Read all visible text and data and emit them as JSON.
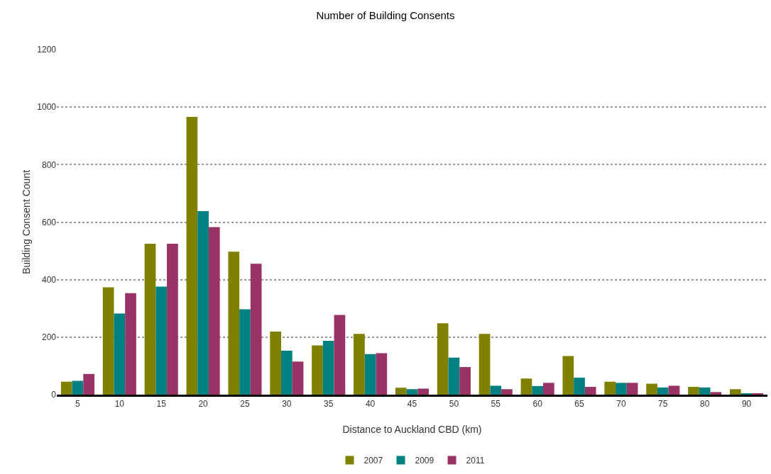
{
  "chart_data": {
    "type": "bar",
    "title": "Number of Building Consents",
    "xlabel": "Distance to Auckland CBD (km)",
    "ylabel": "Building Consent Count",
    "categories": [
      "5",
      "10",
      "15",
      "20",
      "25",
      "30",
      "35",
      "40",
      "45",
      "50",
      "55",
      "60",
      "65",
      "70",
      "75",
      "80",
      "90"
    ],
    "series": [
      {
        "name": "2007",
        "color": "#808000",
        "values": [
          45,
          373,
          525,
          966,
          497,
          219,
          171,
          211,
          24,
          248,
          211,
          56,
          134,
          45,
          38,
          27,
          19
        ]
      },
      {
        "name": "2009",
        "color": "#008080",
        "values": [
          48,
          282,
          376,
          638,
          297,
          153,
          187,
          141,
          19,
          129,
          31,
          30,
          59,
          41,
          25,
          25,
          5
        ]
      },
      {
        "name": "2011",
        "color": "#993366",
        "values": [
          72,
          353,
          525,
          583,
          455,
          115,
          277,
          144,
          21,
          96,
          19,
          41,
          27,
          41,
          31,
          9,
          5
        ]
      }
    ],
    "ylim": [
      0,
      1200
    ],
    "yticks": [
      0,
      200,
      400,
      600,
      800,
      1000,
      1200
    ],
    "grid": "y",
    "legend": "bottom"
  }
}
